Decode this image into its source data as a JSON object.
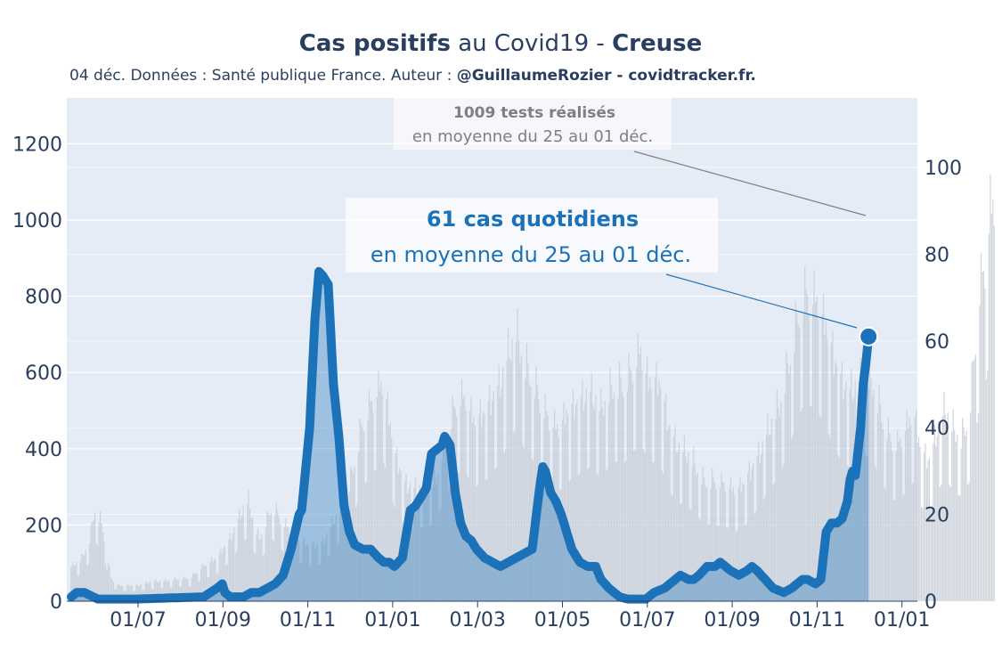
{
  "chart_data": {
    "type": "bar+line",
    "title_parts": [
      {
        "text": "Cas positifs",
        "bold": true
      },
      {
        "text": " au Covid19 - ",
        "bold": false
      },
      {
        "text": "Creuse",
        "bold": true
      }
    ],
    "subtitle_parts": [
      {
        "text": "04 déc. Données : Santé publique France. Auteur : ",
        "bold": false
      },
      {
        "text": "@GuillaumeRozier - covidtracker.fr.",
        "bold": true
      }
    ],
    "x_ticks": [
      "01/07",
      "01/09",
      "01/11",
      "01/01",
      "01/03",
      "01/05",
      "01/07",
      "01/09",
      "01/11",
      "01/01"
    ],
    "y_left": {
      "range": [
        0,
        1320
      ],
      "ticks": [
        0,
        200,
        400,
        600,
        800,
        1000,
        1200
      ]
    },
    "y_right": {
      "range": [
        0,
        116
      ],
      "ticks": [
        0,
        20,
        40,
        60,
        80,
        100
      ]
    },
    "series": [
      {
        "kind": "bars-tests",
        "axis": "left",
        "color": "#c7cdd6",
        "keypoints": [
          [
            0,
            90
          ],
          [
            8,
            110
          ],
          [
            14,
            160
          ],
          [
            18,
            240
          ],
          [
            22,
            210
          ],
          [
            26,
            150
          ],
          [
            30,
            60
          ],
          [
            36,
            40
          ],
          [
            50,
            40
          ],
          [
            60,
            50
          ],
          [
            90,
            60
          ],
          [
            100,
            90
          ],
          [
            110,
            110
          ],
          [
            120,
            160
          ],
          [
            126,
            210
          ],
          [
            130,
            240
          ],
          [
            134,
            260
          ],
          [
            138,
            200
          ],
          [
            142,
            160
          ],
          [
            148,
            210
          ],
          [
            152,
            250
          ],
          [
            160,
            200
          ],
          [
            166,
            180
          ],
          [
            172,
            160
          ],
          [
            180,
            140
          ],
          [
            190,
            150
          ],
          [
            200,
            220
          ],
          [
            210,
            300
          ],
          [
            220,
            460
          ],
          [
            228,
            520
          ],
          [
            236,
            560
          ],
          [
            244,
            380
          ],
          [
            252,
            300
          ],
          [
            260,
            290
          ],
          [
            268,
            300
          ],
          [
            276,
            320
          ],
          [
            280,
            390
          ],
          [
            286,
            460
          ],
          [
            292,
            520
          ],
          [
            298,
            520
          ],
          [
            304,
            460
          ],
          [
            312,
            480
          ],
          [
            318,
            520
          ],
          [
            324,
            560
          ],
          [
            330,
            640
          ],
          [
            336,
            700
          ],
          [
            342,
            620
          ],
          [
            350,
            560
          ],
          [
            356,
            500
          ],
          [
            362,
            460
          ],
          [
            368,
            440
          ],
          [
            374,
            480
          ],
          [
            380,
            500
          ],
          [
            386,
            520
          ],
          [
            392,
            540
          ],
          [
            400,
            500
          ],
          [
            406,
            540
          ],
          [
            410,
            560
          ],
          [
            418,
            560
          ],
          [
            424,
            600
          ],
          [
            430,
            640
          ],
          [
            436,
            560
          ],
          [
            444,
            560
          ],
          [
            452,
            440
          ],
          [
            458,
            400
          ],
          [
            466,
            380
          ],
          [
            470,
            360
          ],
          [
            478,
            310
          ],
          [
            486,
            310
          ],
          [
            494,
            300
          ],
          [
            502,
            280
          ],
          [
            508,
            300
          ],
          [
            514,
            340
          ],
          [
            520,
            380
          ],
          [
            526,
            440
          ],
          [
            530,
            470
          ],
          [
            536,
            520
          ],
          [
            542,
            620
          ],
          [
            548,
            720
          ],
          [
            552,
            780
          ],
          [
            558,
            790
          ],
          [
            564,
            760
          ],
          [
            570,
            700
          ],
          [
            576,
            620
          ],
          [
            582,
            560
          ],
          [
            588,
            540
          ],
          [
            594,
            560
          ],
          [
            600,
            590
          ],
          [
            606,
            560
          ],
          [
            612,
            480
          ],
          [
            618,
            420
          ],
          [
            624,
            400
          ],
          [
            630,
            440
          ],
          [
            636,
            480
          ],
          [
            642,
            380
          ],
          [
            648,
            360
          ],
          [
            654,
            440
          ],
          [
            660,
            500
          ],
          [
            664,
            460
          ],
          [
            668,
            440
          ],
          [
            672,
            420
          ],
          [
            678,
            480
          ],
          [
            682,
            640
          ],
          [
            686,
            800
          ],
          [
            690,
            860
          ],
          [
            694,
            1000
          ],
          [
            697,
            1009
          ]
        ]
      },
      {
        "kind": "area-cases",
        "axis": "right",
        "color": "#1b72b9",
        "keypoints": [
          [
            0,
            1
          ],
          [
            4,
            2
          ],
          [
            10,
            2
          ],
          [
            20,
            0.5
          ],
          [
            50,
            0.5
          ],
          [
            100,
            1
          ],
          [
            110,
            3
          ],
          [
            114,
            4
          ],
          [
            116,
            2
          ],
          [
            120,
            1
          ],
          [
            130,
            1
          ],
          [
            136,
            2
          ],
          [
            142,
            2
          ],
          [
            148,
            3
          ],
          [
            154,
            4
          ],
          [
            160,
            6
          ],
          [
            166,
            12
          ],
          [
            172,
            20
          ],
          [
            174,
            21
          ],
          [
            180,
            40
          ],
          [
            184,
            65
          ],
          [
            187,
            76
          ],
          [
            190,
            75
          ],
          [
            194,
            73
          ],
          [
            198,
            50
          ],
          [
            202,
            38
          ],
          [
            206,
            22
          ],
          [
            210,
            16
          ],
          [
            214,
            13
          ],
          [
            220,
            12
          ],
          [
            226,
            12
          ],
          [
            232,
            10
          ],
          [
            236,
            9
          ],
          [
            240,
            9
          ],
          [
            244,
            8
          ],
          [
            250,
            10
          ],
          [
            256,
            21
          ],
          [
            260,
            22
          ],
          [
            268,
            26
          ],
          [
            272,
            34
          ],
          [
            276,
            35
          ],
          [
            280,
            36
          ],
          [
            282,
            38
          ],
          [
            286,
            36
          ],
          [
            290,
            25
          ],
          [
            294,
            18
          ],
          [
            298,
            15
          ],
          [
            302,
            14
          ],
          [
            306,
            12
          ],
          [
            312,
            10
          ],
          [
            318,
            9
          ],
          [
            324,
            8
          ],
          [
            330,
            9
          ],
          [
            336,
            10
          ],
          [
            342,
            11
          ],
          [
            348,
            12
          ],
          [
            354,
            27
          ],
          [
            356,
            31
          ],
          [
            358,
            30
          ],
          [
            362,
            25
          ],
          [
            366,
            23
          ],
          [
            370,
            20
          ],
          [
            374,
            16
          ],
          [
            378,
            12
          ],
          [
            384,
            9
          ],
          [
            390,
            8
          ],
          [
            396,
            8
          ],
          [
            400,
            5
          ],
          [
            406,
            3
          ],
          [
            414,
            1
          ],
          [
            420,
            0.5
          ],
          [
            434,
            0.5
          ],
          [
            440,
            2
          ],
          [
            448,
            3
          ],
          [
            452,
            4
          ],
          [
            456,
            5
          ],
          [
            460,
            6
          ],
          [
            466,
            5
          ],
          [
            470,
            5
          ],
          [
            474,
            6
          ],
          [
            480,
            8
          ],
          [
            486,
            8
          ],
          [
            490,
            9
          ],
          [
            494,
            8
          ],
          [
            498,
            7
          ],
          [
            504,
            6
          ],
          [
            510,
            7
          ],
          [
            514,
            8
          ],
          [
            518,
            7
          ],
          [
            524,
            5
          ],
          [
            530,
            3
          ],
          [
            538,
            2
          ],
          [
            544,
            3
          ],
          [
            548,
            4
          ],
          [
            552,
            5
          ],
          [
            556,
            5
          ],
          [
            562,
            4
          ],
          [
            566,
            5
          ],
          [
            570,
            16
          ],
          [
            574,
            18
          ],
          [
            578,
            18
          ],
          [
            582,
            19
          ],
          [
            586,
            23
          ],
          [
            588,
            28
          ],
          [
            590,
            30
          ],
          [
            592,
            29
          ],
          [
            596,
            40
          ],
          [
            598,
            50
          ],
          [
            600,
            55
          ],
          [
            602,
            61
          ]
        ]
      }
    ],
    "annotations": [
      {
        "text_bold": "1009 tests réalisés",
        "text": "en moyenne du 25 au 01 déc."
      },
      {
        "text_bold": "61 cas quotidiens",
        "text": "en moyenne du 25 au 01 déc."
      }
    ],
    "colors": {
      "plot_bg": "#e5ecf6",
      "grid": "#ffffff",
      "cases": "#1b72b9",
      "tests": "#c7cdd6",
      "text": "#2a3f5f"
    }
  }
}
